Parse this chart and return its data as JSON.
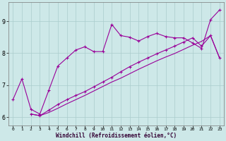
{
  "xlabel": "Windchill (Refroidissement éolien,°C)",
  "bg_color": "#cde8e8",
  "line_color": "#990099",
  "grid_color": "#aacccc",
  "xlim": [
    -0.5,
    23.5
  ],
  "ylim": [
    5.75,
    9.6
  ],
  "xticks": [
    0,
    1,
    2,
    3,
    4,
    5,
    6,
    7,
    8,
    9,
    10,
    11,
    12,
    13,
    14,
    15,
    16,
    17,
    18,
    19,
    20,
    21,
    22,
    23
  ],
  "yticks": [
    6,
    7,
    8,
    9
  ],
  "line1_x": [
    0,
    1,
    2,
    3,
    4,
    5,
    6,
    7,
    8,
    9,
    10,
    11,
    12,
    13,
    14,
    15,
    16,
    17,
    18,
    19,
    20,
    21,
    22,
    23
  ],
  "line1_y": [
    6.55,
    7.2,
    6.25,
    6.1,
    6.85,
    7.6,
    7.85,
    8.1,
    8.2,
    8.05,
    8.05,
    8.9,
    8.55,
    8.5,
    8.38,
    8.52,
    8.62,
    8.52,
    8.48,
    8.48,
    8.32,
    8.15,
    9.05,
    9.35
  ],
  "line2_x": [
    2,
    3,
    4,
    5,
    6,
    7,
    8,
    9,
    10,
    11,
    12,
    13,
    14,
    15,
    16,
    17,
    18,
    19,
    20,
    21,
    22,
    23
  ],
  "line2_y": [
    6.1,
    6.05,
    6.22,
    6.4,
    6.55,
    6.68,
    6.8,
    6.95,
    7.1,
    7.25,
    7.42,
    7.58,
    7.72,
    7.85,
    7.98,
    8.1,
    8.22,
    8.35,
    8.48,
    8.22,
    8.55,
    7.85
  ],
  "line3_x": [
    2,
    3,
    4,
    5,
    6,
    7,
    8,
    9,
    10,
    11,
    12,
    13,
    14,
    15,
    16,
    17,
    18,
    19,
    20,
    21,
    22,
    23
  ],
  "line3_y": [
    6.1,
    6.05,
    6.15,
    6.28,
    6.42,
    6.55,
    6.68,
    6.82,
    6.96,
    7.1,
    7.22,
    7.36,
    7.5,
    7.63,
    7.76,
    7.88,
    7.99,
    8.12,
    8.25,
    8.37,
    8.55,
    7.85
  ]
}
